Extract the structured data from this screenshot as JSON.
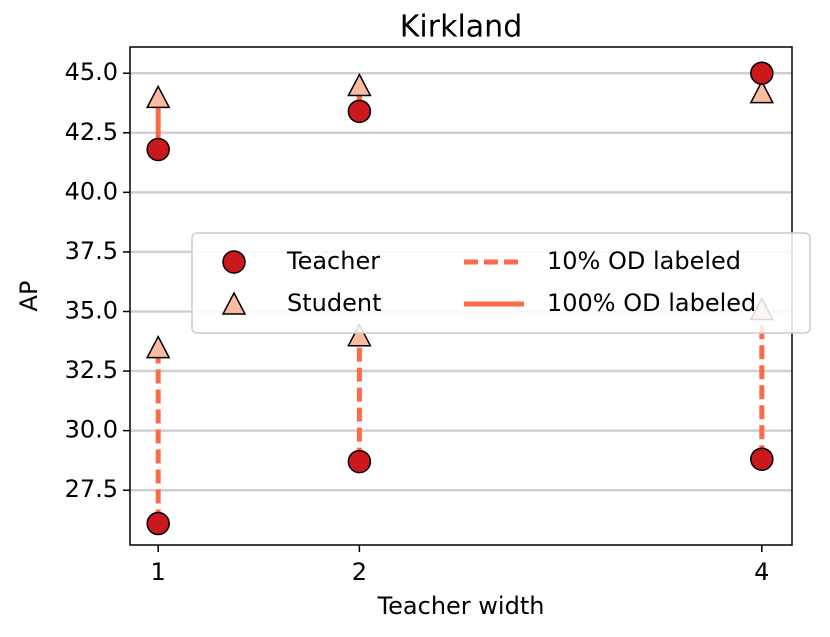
{
  "chart_data": {
    "type": "dumbbell",
    "title": "Kirkland",
    "x_label": "Teacher width",
    "y_label": "AP",
    "x": [
      1,
      2,
      4
    ],
    "xlim": [
      0.86,
      4.15
    ],
    "xticks": [
      1,
      2,
      4
    ],
    "ylim": [
      25.2,
      46.1
    ],
    "yticks": [
      27.5,
      {
        "value": 30,
        "label": "30.0"
      },
      32.5,
      {
        "value": 35,
        "label": "35.0"
      },
      37.5,
      {
        "value": 40,
        "label": "40.0"
      },
      42.5,
      {
        "value": 45,
        "label": "45.0"
      }
    ],
    "grid": true,
    "legend": "center right",
    "markers": [
      {
        "name": "Teacher",
        "shape": "circle",
        "color": "#cb181d"
      },
      {
        "name": "Student",
        "shape": "triangle",
        "color": "#fcbba1"
      }
    ],
    "series": [
      {
        "name": "10% OD labeled",
        "line_style": "dashed",
        "color": "#fb6a4a",
        "teacher": [
          26.1,
          28.7,
          28.8
        ],
        "student": [
          33.4,
          33.9,
          35.0
        ]
      },
      {
        "name": "100% OD labeled",
        "line_style": "solid",
        "color": "#fb6a4a",
        "teacher": [
          41.8,
          43.4,
          45.0
        ],
        "student": [
          43.9,
          44.4,
          44.1
        ]
      }
    ]
  }
}
